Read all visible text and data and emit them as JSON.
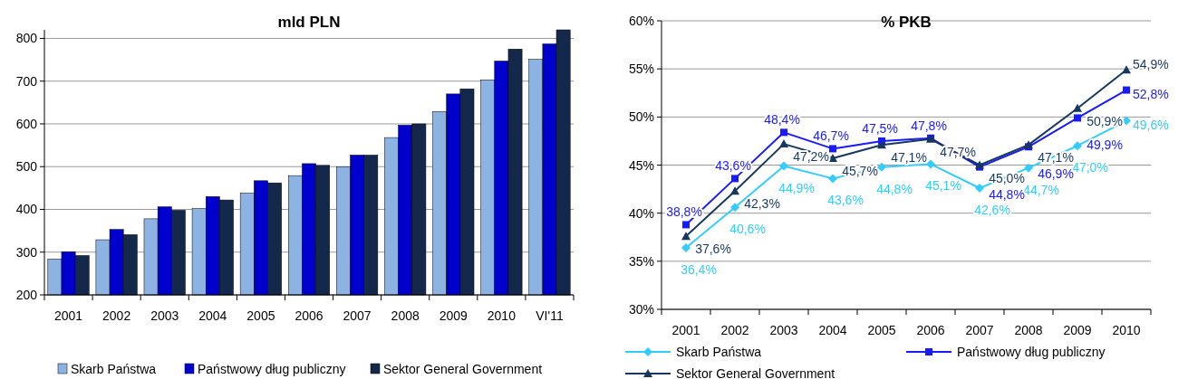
{
  "chart_data": [
    {
      "type": "bar",
      "title": "mld PLN",
      "categories": [
        "2001",
        "2002",
        "2003",
        "2004",
        "2005",
        "2006",
        "2007",
        "2008",
        "2009",
        "2010",
        "VI'11"
      ],
      "series": [
        {
          "name": "Skarb Państwa",
          "color": "#8db3e2",
          "values": [
            284,
            329,
            378,
            402,
            438,
            479,
            499,
            568,
            629,
            703,
            751
          ]
        },
        {
          "name": "Państwowy dług publiczny",
          "color": "#0000cc",
          "values": [
            301,
            353,
            406,
            430,
            467,
            507,
            527,
            597,
            670,
            747,
            787
          ]
        },
        {
          "name": "Sektor General Government",
          "color": "#14284b",
          "values": [
            292,
            341,
            398,
            422,
            462,
            503,
            527,
            600,
            682,
            775,
            820
          ]
        }
      ],
      "ylim": [
        200,
        820
      ],
      "yticks": [
        200,
        300,
        400,
        500,
        600,
        700,
        800
      ],
      "grid": "y",
      "legend": "bottom"
    },
    {
      "type": "line",
      "title": "% PKB",
      "categories": [
        "2001",
        "2002",
        "2003",
        "2004",
        "2005",
        "2006",
        "2007",
        "2008",
        "2009",
        "2010"
      ],
      "series": [
        {
          "name": "Skarb Państwa",
          "color": "#33ccff",
          "marker": "diamond",
          "values": [
            36.4,
            40.6,
            44.9,
            43.6,
            44.8,
            45.1,
            42.6,
            44.7,
            47.0,
            49.6
          ],
          "value_labels": [
            "36,4%",
            "40,6%",
            "44,9%",
            "43,6%",
            "44,8%",
            "45,1%",
            "42,6%",
            "44,7%",
            "47,0%",
            "49,6%"
          ]
        },
        {
          "name": "Państwowy dług publiczny",
          "color": "#1a1aff",
          "marker": "square",
          "values": [
            38.8,
            43.6,
            48.4,
            46.7,
            47.5,
            47.8,
            44.8,
            46.9,
            49.9,
            52.8
          ],
          "value_labels": [
            "38,8%",
            "43,6%",
            "48,4%",
            "46,7%",
            "47,5%",
            "47,8%",
            "44,8%",
            "46,9%",
            "49,9%",
            "52,8%"
          ]
        },
        {
          "name": "Sektor General Government",
          "color": "#17375e",
          "marker": "triangle",
          "values": [
            37.6,
            42.3,
            47.2,
            45.7,
            47.1,
            47.7,
            45.0,
            47.1,
            50.9,
            54.9
          ],
          "value_labels": [
            "37,6%",
            "42,3%",
            "47,2%",
            "45,7%",
            "47,1%",
            "47,7%",
            "45,0%",
            "47,1%",
            "50,9%",
            "54,9%"
          ]
        }
      ],
      "ylim": [
        30,
        60
      ],
      "yticks": [
        {
          "value": 30,
          "label": "30%"
        },
        {
          "value": 35,
          "label": "35%"
        },
        {
          "value": 40,
          "label": "40%"
        },
        {
          "value": 45,
          "label": "45%"
        },
        {
          "value": 50,
          "label": "50%"
        },
        {
          "value": 55,
          "label": "55%"
        },
        {
          "value": 60,
          "label": "60%"
        }
      ],
      "grid": "y",
      "legend": "bottom",
      "line_style": "solid"
    }
  ]
}
